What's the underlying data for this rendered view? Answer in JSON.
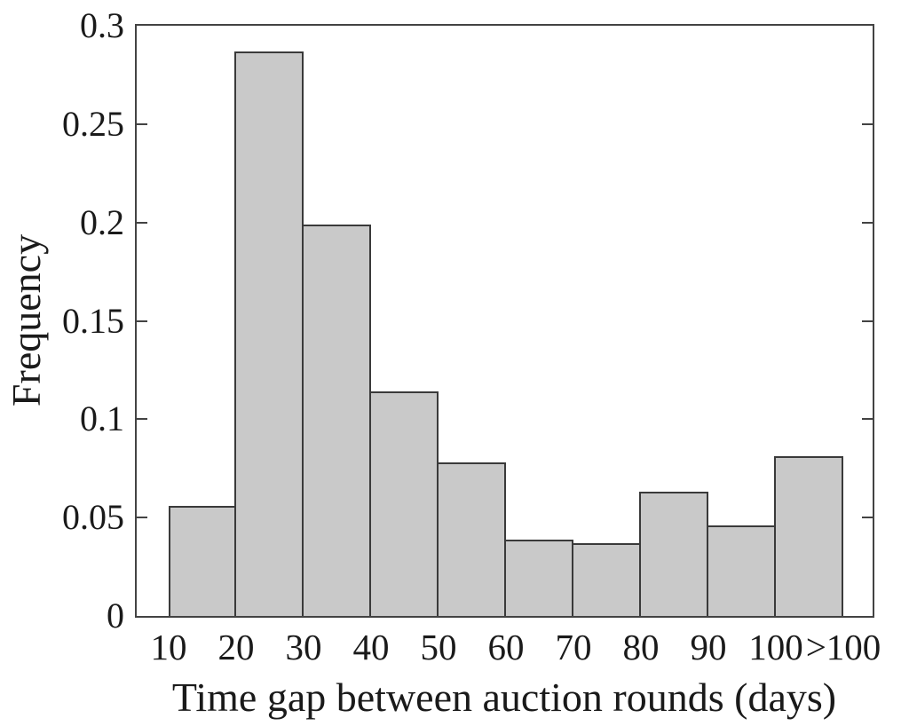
{
  "figure": {
    "background": "#ffffff"
  },
  "chart_data": {
    "type": "bar",
    "subtype": "histogram",
    "title": "",
    "xlabel": "Time gap between auction rounds (days)",
    "ylabel": "Frequency",
    "categories": [
      "10-20",
      "20-30",
      "30-40",
      "40-50",
      "50-60",
      "60-70",
      "70-80",
      "80-90",
      "90-100",
      ">100"
    ],
    "values": [
      0.056,
      0.287,
      0.199,
      0.114,
      0.078,
      0.039,
      0.037,
      0.063,
      0.046,
      0.081
    ],
    "x_tick_labels": [
      "10",
      "20",
      "30",
      "40",
      "50",
      "60",
      "70",
      "80",
      "90",
      "100",
      ">100"
    ],
    "y_ticks": [
      0,
      0.05,
      0.1,
      0.15,
      0.2,
      0.25,
      0.3
    ],
    "y_tick_labels": [
      "0",
      "0.05",
      "0.1",
      "0.15",
      "0.2",
      "0.25",
      "0.3"
    ],
    "ylim": [
      0,
      0.3
    ],
    "grid": false,
    "legend": null,
    "box": true,
    "tick_direction": "in",
    "bar_fill": "#c9c9c9",
    "bar_edge": "#3a3a3a",
    "axis_color": "#434343",
    "text_color": "#1a1a1a"
  }
}
